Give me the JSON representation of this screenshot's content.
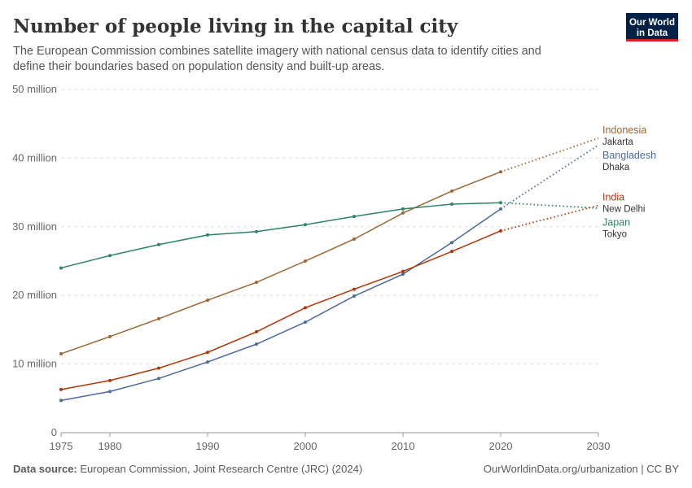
{
  "chart_data": {
    "type": "line",
    "title": "Number of people living in the capital city",
    "subtitle": "The European Commission combines satellite imagery with national census data to identify cities and define their boundaries based on population density and built-up areas.",
    "logo": [
      "Our World",
      "in Data"
    ],
    "x": [
      1975,
      1980,
      1985,
      1990,
      1995,
      2000,
      2005,
      2010,
      2015,
      2020,
      2030
    ],
    "xlim": [
      1975,
      2030
    ],
    "xticks": [
      1975,
      1980,
      1990,
      2000,
      2010,
      2020,
      2030
    ],
    "ylim": [
      0,
      50000000
    ],
    "yticks": [
      0,
      {
        "value": 10000000,
        "label": "10 million"
      },
      {
        "value": 20000000,
        "label": "20 million"
      },
      {
        "value": 30000000,
        "label": "30 million"
      },
      {
        "value": 40000000,
        "label": "40 million"
      },
      {
        "value": 50000000,
        "label": "50 million"
      }
    ],
    "grid": true,
    "projection_start": 2020,
    "series": [
      {
        "name": "Indonesia",
        "city": "Jakarta",
        "color": "#9c652f",
        "values": [
          11500000,
          14000000,
          16600000,
          19300000,
          21900000,
          25000000,
          28200000,
          32000000,
          35200000,
          38000000,
          42900000
        ]
      },
      {
        "name": "Bangladesh",
        "city": "Dhaka",
        "color": "#4c6a9c",
        "values": [
          4700000,
          6000000,
          7900000,
          10300000,
          12900000,
          16100000,
          19900000,
          23100000,
          27700000,
          32600000,
          41900000
        ]
      },
      {
        "name": "India",
        "city": "New Delhi",
        "color": "#b13507",
        "values": [
          6300000,
          7600000,
          9400000,
          11700000,
          14700000,
          18200000,
          20900000,
          23500000,
          26400000,
          29400000,
          33100000
        ]
      },
      {
        "name": "Japan",
        "city": "Tokyo",
        "color": "#2c8465",
        "values": [
          24000000,
          25800000,
          27400000,
          28800000,
          29300000,
          30300000,
          31500000,
          32600000,
          33300000,
          33500000,
          32700000
        ]
      }
    ],
    "source_label": "Data source:",
    "source": "European Commission, Joint Research Centre (JRC) (2024)",
    "credit": "OurWorldinData.org/urbanization | CC BY"
  }
}
